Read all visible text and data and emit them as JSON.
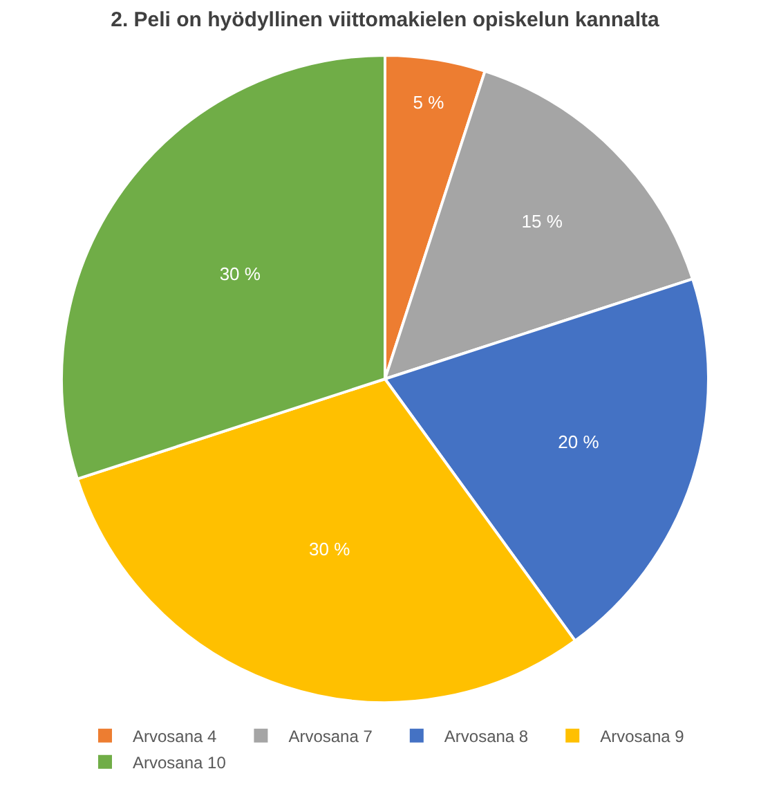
{
  "chart_data": {
    "type": "pie",
    "title": "2. Peli on hyödyllinen viittomakielen opiskelun kannalta",
    "categories": [
      "Arvosana 4",
      "Arvosana 7",
      "Arvosana 8",
      "Arvosana 9",
      "Arvosana 10"
    ],
    "values": [
      5,
      15,
      20,
      30,
      30
    ],
    "colors": [
      "#ed7d31",
      "#a5a5a5",
      "#4472c4",
      "#ffc000",
      "#70ad47"
    ],
    "value_labels": [
      "5 %",
      "15 %",
      "20 %",
      "30 %",
      "30 %"
    ],
    "legend": "bottom"
  }
}
